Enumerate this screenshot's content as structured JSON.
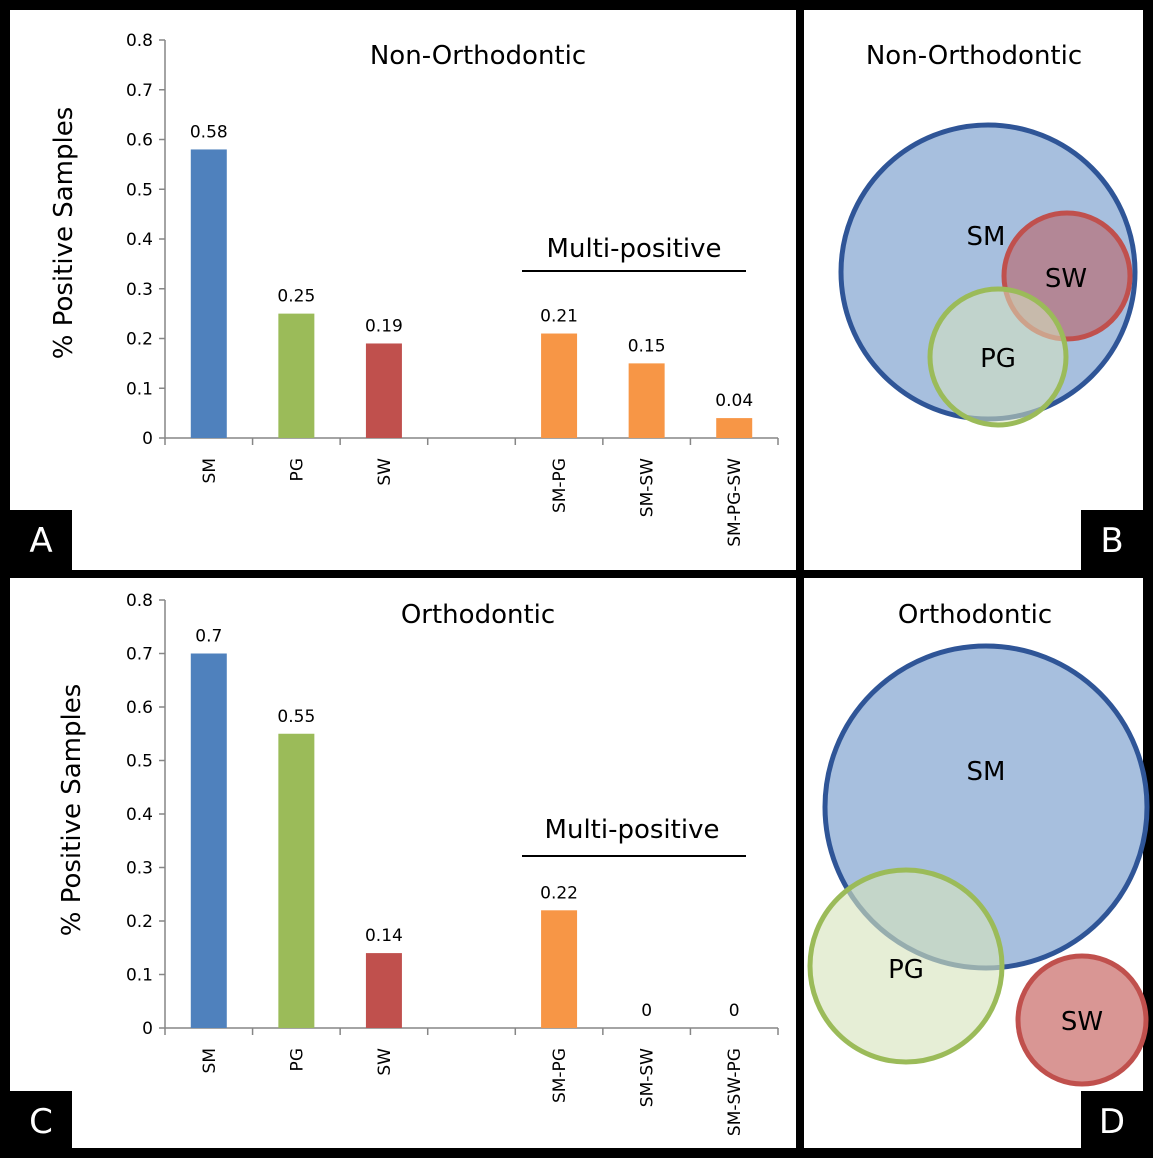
{
  "panels": {
    "a": {
      "letter": "A"
    },
    "b": {
      "letter": "B",
      "title": "Non-Orthodontic",
      "circles": [
        "SM",
        "SW",
        "PG"
      ]
    },
    "c": {
      "letter": "C"
    },
    "d": {
      "letter": "D",
      "title": "Orthodontic",
      "circles": [
        "SM",
        "PG",
        "SW"
      ]
    }
  },
  "colors": {
    "SM": "#4F81BD",
    "PG": "#9BBB59",
    "SW": "#C0504D",
    "multi": "#F79646",
    "venn_sm_fill": "#A7BFDE",
    "venn_sm_stroke": "#2F5597",
    "venn_pg_fill": "#D7E4BD",
    "venn_pg_stroke": "#9BBB59",
    "venn_sw_fill": "#D99694",
    "venn_sw_stroke": "#C0504D"
  },
  "chart_data": [
    {
      "type": "bar",
      "title": "Non-Orthodontic",
      "ylabel": "% Positive Samples",
      "ylim": [
        0,
        0.8
      ],
      "yticks": [
        "0",
        "0.1",
        "0.2",
        "0.3",
        "0.4",
        "0.5",
        "0.6",
        "0.7",
        "0.8"
      ],
      "group_label": "Multi-positive",
      "categories": [
        "SM",
        "PG",
        "SW",
        "",
        "SM-PG",
        "SM-SW",
        "SM-PG-SW"
      ],
      "values": [
        0.58,
        0.25,
        0.19,
        null,
        0.21,
        0.15,
        0.04
      ],
      "labels": [
        "0.58",
        "0.25",
        "0.19",
        "",
        "0.21",
        "0.15",
        "0.04"
      ],
      "bar_colors": [
        "SM",
        "PG",
        "SW",
        "",
        "multi",
        "multi",
        "multi"
      ]
    },
    {
      "type": "bar",
      "title": "Orthodontic",
      "ylabel": "% Positive Samples",
      "ylim": [
        0,
        0.8
      ],
      "yticks": [
        "0",
        "0.1",
        "0.2",
        "0.3",
        "0.4",
        "0.5",
        "0.6",
        "0.7",
        "0.8"
      ],
      "group_label": "Multi-positive",
      "categories": [
        "SM",
        "PG",
        "SW",
        "",
        "SM-PG",
        "SM-SW",
        "SM-SW-PG"
      ],
      "values": [
        0.7,
        0.55,
        0.14,
        null,
        0.22,
        0,
        0
      ],
      "labels": [
        "0.7",
        "0.55",
        "0.14",
        "",
        "0.22",
        "0",
        "0"
      ],
      "bar_colors": [
        "SM",
        "PG",
        "SW",
        "",
        "multi",
        "multi",
        "multi"
      ]
    }
  ]
}
